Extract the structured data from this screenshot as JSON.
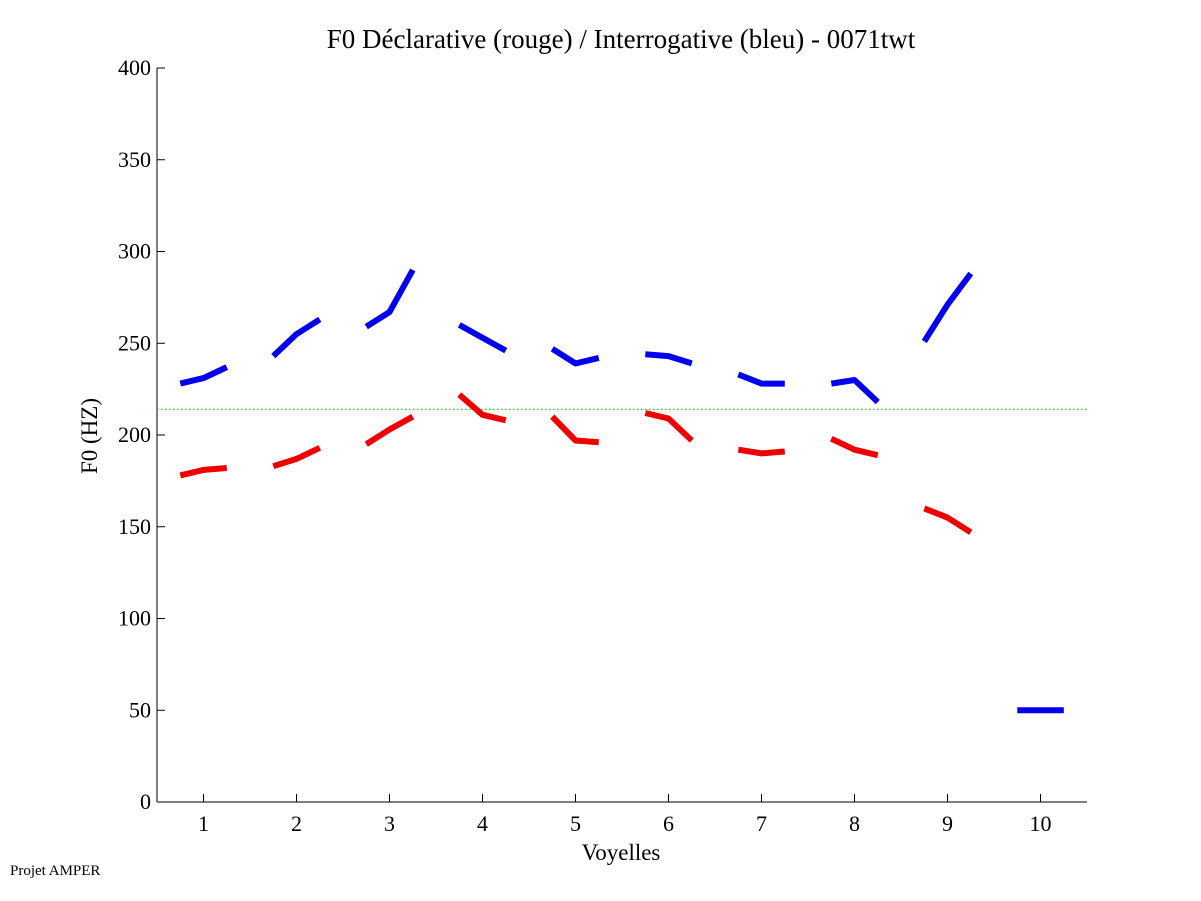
{
  "footer_text": "Projet AMPER",
  "chart_data": {
    "type": "line",
    "title": "F0 Déclarative (rouge) / Interrogative (bleu) - 0071twt",
    "xlabel": "Voyelles",
    "ylabel": "F0 (HZ)",
    "xlim": [
      0.5,
      10.5
    ],
    "ylim": [
      0,
      400
    ],
    "xticks": [
      1,
      2,
      3,
      4,
      5,
      6,
      7,
      8,
      9,
      10
    ],
    "yticks": [
      0,
      50,
      100,
      150,
      200,
      250,
      300,
      350,
      400
    ],
    "grid": false,
    "reference_line": {
      "y": 214,
      "color": "#00cc00",
      "style": "dotted"
    },
    "series": [
      {
        "name": "Interrogative (bleu)",
        "color": "#0000ee",
        "segments": [
          {
            "vowel": 1,
            "points": [
              [
                0.75,
                228
              ],
              [
                1.0,
                231
              ],
              [
                1.25,
                237
              ]
            ]
          },
          {
            "vowel": 2,
            "points": [
              [
                1.75,
                243
              ],
              [
                2.0,
                255
              ],
              [
                2.25,
                263
              ]
            ]
          },
          {
            "vowel": 3,
            "points": [
              [
                2.75,
                259
              ],
              [
                3.0,
                267
              ],
              [
                3.25,
                290
              ]
            ]
          },
          {
            "vowel": 4,
            "points": [
              [
                3.75,
                260
              ],
              [
                4.0,
                253
              ],
              [
                4.25,
                246
              ]
            ]
          },
          {
            "vowel": 5,
            "points": [
              [
                4.75,
                247
              ],
              [
                5.0,
                239
              ],
              [
                5.25,
                242
              ]
            ]
          },
          {
            "vowel": 6,
            "points": [
              [
                5.75,
                244
              ],
              [
                6.0,
                243
              ],
              [
                6.25,
                239
              ]
            ]
          },
          {
            "vowel": 7,
            "points": [
              [
                6.75,
                233
              ],
              [
                7.0,
                228
              ],
              [
                7.25,
                228
              ]
            ]
          },
          {
            "vowel": 8,
            "points": [
              [
                7.75,
                228
              ],
              [
                8.0,
                230
              ],
              [
                8.25,
                218
              ]
            ]
          },
          {
            "vowel": 9,
            "points": [
              [
                8.75,
                251
              ],
              [
                9.0,
                271
              ],
              [
                9.25,
                288
              ]
            ]
          },
          {
            "vowel": 10,
            "points": [
              [
                9.75,
                50
              ],
              [
                10.0,
                50
              ],
              [
                10.25,
                50
              ]
            ]
          }
        ]
      },
      {
        "name": "Déclarative (rouge)",
        "color": "#ee0000",
        "segments": [
          {
            "vowel": 1,
            "points": [
              [
                0.75,
                178
              ],
              [
                1.0,
                181
              ],
              [
                1.25,
                182
              ]
            ]
          },
          {
            "vowel": 2,
            "points": [
              [
                1.75,
                183
              ],
              [
                2.0,
                187
              ],
              [
                2.25,
                193
              ]
            ]
          },
          {
            "vowel": 3,
            "points": [
              [
                2.75,
                195
              ],
              [
                3.0,
                203
              ],
              [
                3.25,
                210
              ]
            ]
          },
          {
            "vowel": 4,
            "points": [
              [
                3.75,
                222
              ],
              [
                4.0,
                211
              ],
              [
                4.25,
                208
              ]
            ]
          },
          {
            "vowel": 5,
            "points": [
              [
                4.75,
                210
              ],
              [
                5.0,
                197
              ],
              [
                5.25,
                196
              ]
            ]
          },
          {
            "vowel": 6,
            "points": [
              [
                5.75,
                212
              ],
              [
                6.0,
                209
              ],
              [
                6.25,
                197
              ]
            ]
          },
          {
            "vowel": 7,
            "points": [
              [
                6.75,
                192
              ],
              [
                7.0,
                190
              ],
              [
                7.25,
                191
              ]
            ]
          },
          {
            "vowel": 8,
            "points": [
              [
                7.75,
                198
              ],
              [
                8.0,
                192
              ],
              [
                8.25,
                189
              ]
            ]
          },
          {
            "vowel": 9,
            "points": [
              [
                8.75,
                160
              ],
              [
                9.0,
                155
              ],
              [
                9.25,
                147
              ]
            ]
          }
        ]
      }
    ]
  }
}
